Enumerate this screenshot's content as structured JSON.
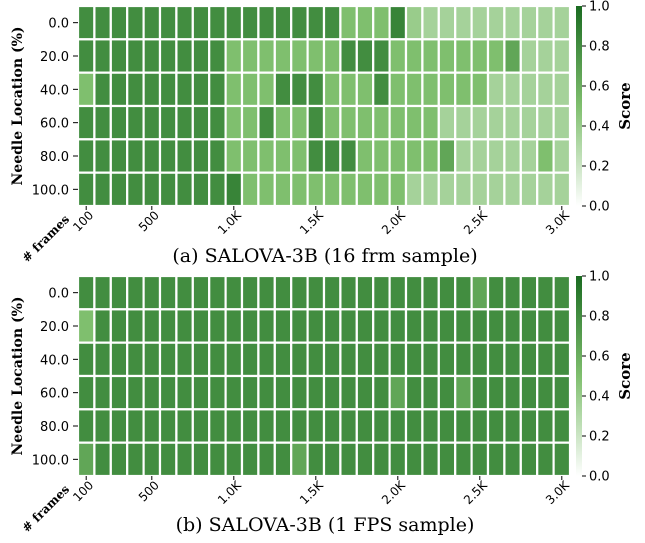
{
  "chart_data": [
    {
      "type": "heatmap",
      "caption": "(a) SALOVA-3B (16 frm sample)",
      "ylabel": "Needle Location (%)",
      "y_categories": [
        "0.0",
        "20.0",
        "40.0",
        "60.0",
        "80.0",
        "100.0"
      ],
      "x_axis_title": "# frames",
      "x_tick_labels": [
        "100",
        "500",
        "1.0K",
        "1.5K",
        "2.0K",
        "2.5K",
        "3.0K"
      ],
      "x_tick_columns": [
        0,
        4,
        9,
        14,
        19,
        24,
        29
      ],
      "colorbar": {
        "label": "Score",
        "ticks": [
          "0.0",
          "0.2",
          "0.4",
          "0.6",
          "0.8",
          "1.0"
        ],
        "range": [
          0,
          1
        ]
      },
      "colors": {
        "low": "#ffffff",
        "high": "#1a6b21"
      },
      "values": [
        [
          0.8,
          0.8,
          0.8,
          0.8,
          0.8,
          0.8,
          0.8,
          0.8,
          0.8,
          0.8,
          0.8,
          0.8,
          0.8,
          0.8,
          0.8,
          0.8,
          0.5,
          0.5,
          0.5,
          0.85,
          0.4,
          0.35,
          0.35,
          0.35,
          0.35,
          0.35,
          0.35,
          0.35,
          0.35,
          0.35
        ],
        [
          0.8,
          0.8,
          0.8,
          0.8,
          0.8,
          0.8,
          0.8,
          0.8,
          0.8,
          0.5,
          0.5,
          0.5,
          0.5,
          0.5,
          0.5,
          0.5,
          0.8,
          0.8,
          0.8,
          0.5,
          0.5,
          0.5,
          0.5,
          0.5,
          0.5,
          0.5,
          0.65,
          0.35,
          0.35,
          0.35
        ],
        [
          0.5,
          0.8,
          0.8,
          0.8,
          0.8,
          0.8,
          0.8,
          0.8,
          0.8,
          0.5,
          0.5,
          0.5,
          0.8,
          0.8,
          0.8,
          0.5,
          0.5,
          0.5,
          0.8,
          0.5,
          0.5,
          0.5,
          0.5,
          0.5,
          0.5,
          0.35,
          0.35,
          0.35,
          0.35,
          0.35
        ],
        [
          0.8,
          0.8,
          0.8,
          0.8,
          0.8,
          0.8,
          0.8,
          0.8,
          0.8,
          0.5,
          0.5,
          0.8,
          0.5,
          0.5,
          0.8,
          0.5,
          0.5,
          0.5,
          0.5,
          0.5,
          0.5,
          0.5,
          0.35,
          0.35,
          0.35,
          0.35,
          0.35,
          0.35,
          0.35,
          0.35
        ],
        [
          0.8,
          0.8,
          0.8,
          0.8,
          0.8,
          0.8,
          0.8,
          0.8,
          0.8,
          0.5,
          0.5,
          0.5,
          0.5,
          0.5,
          0.8,
          0.8,
          0.8,
          0.5,
          0.5,
          0.5,
          0.5,
          0.5,
          0.65,
          0.35,
          0.35,
          0.35,
          0.35,
          0.35,
          0.5,
          0.35
        ],
        [
          0.8,
          0.8,
          0.8,
          0.8,
          0.8,
          0.8,
          0.8,
          0.8,
          0.8,
          0.85,
          0.5,
          0.5,
          0.5,
          0.5,
          0.5,
          0.5,
          0.5,
          0.5,
          0.5,
          0.5,
          0.35,
          0.35,
          0.35,
          0.35,
          0.35,
          0.35,
          0.35,
          0.35,
          0.35,
          0.35
        ]
      ]
    },
    {
      "type": "heatmap",
      "caption": "(b) SALOVA-3B (1 FPS sample)",
      "ylabel": "Needle Location (%)",
      "y_categories": [
        "0.0",
        "20.0",
        "40.0",
        "60.0",
        "80.0",
        "100.0"
      ],
      "x_axis_title": "# frames",
      "x_tick_labels": [
        "100",
        "500",
        "1.0K",
        "1.5K",
        "2.0K",
        "2.5K",
        "3.0K"
      ],
      "x_tick_columns": [
        0,
        4,
        9,
        14,
        19,
        24,
        29
      ],
      "colorbar": {
        "label": "Score",
        "ticks": [
          "0.0",
          "0.2",
          "0.4",
          "0.6",
          "0.8",
          "1.0"
        ],
        "range": [
          0,
          1
        ]
      },
      "colors": {
        "low": "#ffffff",
        "high": "#1a6b21"
      },
      "values": [
        [
          0.8,
          0.8,
          0.8,
          0.8,
          0.8,
          0.8,
          0.8,
          0.8,
          0.8,
          0.8,
          0.8,
          0.8,
          0.8,
          0.8,
          0.8,
          0.8,
          0.8,
          0.8,
          0.8,
          0.8,
          0.8,
          0.8,
          0.8,
          0.8,
          0.65,
          0.8,
          0.8,
          0.8,
          0.8,
          0.8
        ],
        [
          0.5,
          0.8,
          0.8,
          0.8,
          0.8,
          0.8,
          0.8,
          0.8,
          0.8,
          0.8,
          0.8,
          0.8,
          0.8,
          0.8,
          0.8,
          0.8,
          0.8,
          0.8,
          0.8,
          0.8,
          0.8,
          0.8,
          0.8,
          0.8,
          0.8,
          0.8,
          0.8,
          0.8,
          0.8,
          0.8
        ],
        [
          0.8,
          0.8,
          0.8,
          0.8,
          0.8,
          0.8,
          0.8,
          0.8,
          0.8,
          0.8,
          0.8,
          0.8,
          0.8,
          0.8,
          0.8,
          0.8,
          0.8,
          0.8,
          0.8,
          0.8,
          0.8,
          0.8,
          0.8,
          0.8,
          0.8,
          0.8,
          0.8,
          0.8,
          0.8,
          0.8
        ],
        [
          0.8,
          0.8,
          0.8,
          0.8,
          0.8,
          0.8,
          0.8,
          0.8,
          0.8,
          0.8,
          0.8,
          0.8,
          0.8,
          0.8,
          0.8,
          0.8,
          0.8,
          0.8,
          0.8,
          0.65,
          0.8,
          0.8,
          0.8,
          0.65,
          0.8,
          0.8,
          0.8,
          0.8,
          0.8,
          0.8
        ],
        [
          0.8,
          0.8,
          0.8,
          0.8,
          0.8,
          0.8,
          0.8,
          0.8,
          0.8,
          0.8,
          0.8,
          0.8,
          0.8,
          0.8,
          0.8,
          0.8,
          0.8,
          0.8,
          0.8,
          0.8,
          0.8,
          0.8,
          0.8,
          0.8,
          0.8,
          0.8,
          0.8,
          0.8,
          0.8,
          0.8
        ],
        [
          0.65,
          0.8,
          0.8,
          0.8,
          0.8,
          0.8,
          0.8,
          0.8,
          0.8,
          0.8,
          0.8,
          0.8,
          0.8,
          0.65,
          0.8,
          0.8,
          0.8,
          0.8,
          0.8,
          0.8,
          0.8,
          0.8,
          0.8,
          0.8,
          0.8,
          0.8,
          0.8,
          0.8,
          0.8,
          0.8
        ]
      ]
    }
  ]
}
